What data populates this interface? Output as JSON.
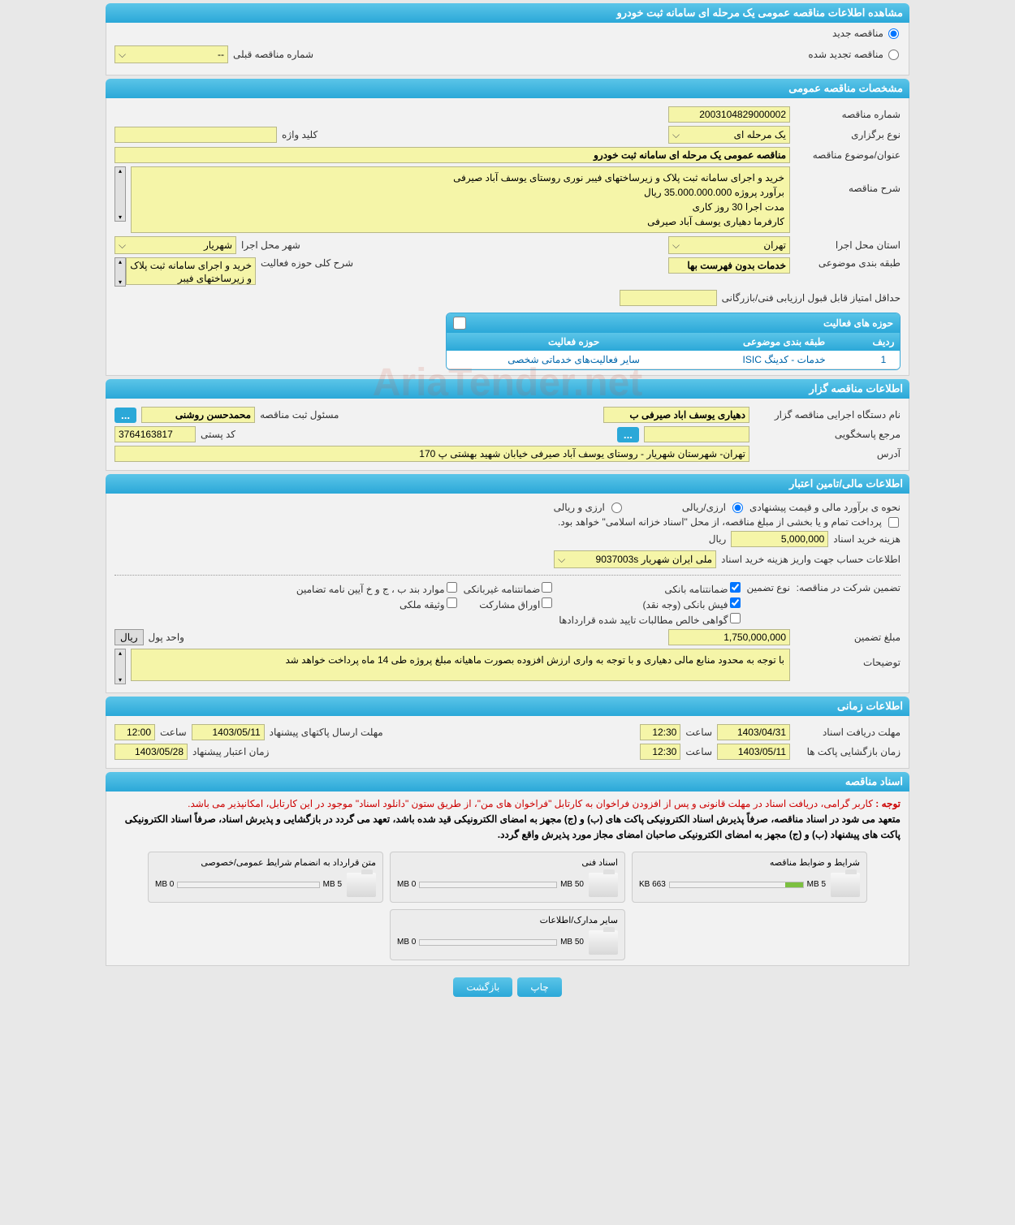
{
  "colors": {
    "header_bg_top": "#5bc5e8",
    "header_bg_bottom": "#2ba8d8",
    "field_bg": "#f5f5a8",
    "page_bg": "#e8e8e8",
    "notice_red": "#cc0000",
    "progress_green": "#7cc040",
    "link_blue": "#0066aa"
  },
  "main_title": "مشاهده اطلاعات مناقصه عمومی یک مرحله ای سامانه ثبت خودرو",
  "top_radio": {
    "new_label": "مناقصه جدید",
    "renewed_label": "مناقصه تجدید شده"
  },
  "prev_tender": {
    "label": "شماره مناقصه قبلی",
    "value": "--"
  },
  "sections": {
    "general": "مشخصات مناقصه عمومی",
    "issuer": "اطلاعات مناقصه گزار",
    "financial": "اطلاعات مالی/تامین اعتبار",
    "timing": "اطلاعات زمانی",
    "documents": "اسناد مناقصه"
  },
  "general": {
    "tender_no_label": "شماره مناقصه",
    "tender_no": "2003104829000002",
    "keyword_label": "کلید واژه",
    "type_label": "نوع برگزاری",
    "type_value": "یک مرحله ای",
    "subject_label": "عنوان/موضوع مناقصه",
    "subject_value": "مناقصه عمومی یک مرحله ای سامانه ثبت خودرو",
    "desc_label": "شرح مناقصه",
    "desc_text": "خرید و اجرای سامانه ثبت پلاک و زیرساختهای فیبر نوری روستای یوسف آباد صیرفی\nبرآورد پروژه 35.000.000.000 ریال\nمدت اجرا 30 روز کاری\nکارفرما دهیاری یوسف آباد صیرفی",
    "province_label": "استان محل اجرا",
    "province_value": "تهران",
    "city_label": "شهر محل اجرا",
    "city_value": "شهریار",
    "category_label": "طبقه بندی موضوعی",
    "category_value": "خدمات بدون فهرست بها",
    "activity_desc_label": "شرح کلی حوزه فعالیت",
    "activity_desc_value": "خرید و اجرای سامانه ثبت پلاک و زیرساختهای فیبر",
    "min_score_label": "حداقل امتیاز قابل قبول ارزیابی فنی/بازرگانی"
  },
  "activity_table": {
    "title": "حوزه های فعالیت",
    "headers": [
      "ردیف",
      "طبقه بندی موضوعی",
      "حوزه فعالیت"
    ],
    "row": [
      "1",
      "خدمات - کدینگ ISIC",
      "سایر فعالیت‌های خدماتی شخصی"
    ]
  },
  "issuer": {
    "org_label": "نام دستگاه اجرایی مناقصه گزار",
    "org_value": "دهیاری یوسف اباد صیرفی ب",
    "reg_resp_label": "مسئول ثبت مناقصه",
    "reg_resp_value": "محمدحسن روشنی",
    "contact_label": "مرجع پاسخگویی",
    "postal_label": "کد پستی",
    "postal_value": "3764163817",
    "address_label": "آدرس",
    "address_value": "تهران- شهرستان شهریار - روستای یوسف آباد صیرفی خیابان شهید بهشتی پ 170"
  },
  "financial": {
    "est_method_label": "نحوه ی برآورد مالی و قیمت پیشنهادی",
    "currency_rial": "ارزی/ریالی",
    "currency_both": "ارزی و ریالی",
    "payment_note": "پرداخت تمام و یا بخشی از مبلغ مناقصه، از محل \"اسناد خزانه اسلامی\" خواهد بود.",
    "doc_cost_label": "هزینه خرید اسناد",
    "doc_cost_value": "5,000,000",
    "rial_unit": "ریال",
    "account_label": "اطلاعات حساب جهت واریز هزینه خرید اسناد",
    "account_value": "ملی ایران شهریار 9037003s",
    "guarantee_label": "تضمین شرکت در مناقصه:",
    "guarantee_type_label": "نوع تضمین",
    "g1": "ضمانتنامه بانکی",
    "g2": "ضمانتنامه غیربانکی",
    "g3": "موارد بند ب ، ج و خ آیین نامه تضامین",
    "g4": "فیش بانکی (وجه نقد)",
    "g5": "اوراق مشارکت",
    "g6": "وثیقه ملکی",
    "g7": "گواهی خالص مطالبات تایید شده قراردادها",
    "guarantee_amount_label": "مبلغ تضمین",
    "guarantee_amount": "1,750,000,000",
    "currency_unit_label": "واحد پول",
    "remarks_label": "توضیحات",
    "remarks_value": "با توجه به محدود منابع مالی دهیاری و با توجه به واری ارزش افزوده بصورت ماهیانه مبلغ پروژه طی 14 ماه پرداخت خواهد شد"
  },
  "timing": {
    "receipt_deadline_label": "مهلت دریافت اسناد",
    "receipt_date": "1403/04/31",
    "receipt_time": "12:30",
    "time_label": "ساعت",
    "envelope_deadline_label": "مهلت ارسال پاکتهای پیشنهاد",
    "envelope_date": "1403/05/11",
    "envelope_time": "12:00",
    "opening_label": "زمان بازگشایی پاکت ها",
    "opening_date": "1403/05/11",
    "opening_time": "12:30",
    "validity_label": "زمان اعتبار پیشنهاد",
    "validity_date": "1403/05/28"
  },
  "notices": {
    "line1_prefix": "توجه : ",
    "line1": "کاربر گرامی، دریافت اسناد در مهلت قانونی و پس از افزودن فراخوان به کارتابل \"فراخوان های من\"، از طریق ستون \"دانلود اسناد\" موجود در این کارتابل، امکانپذیر می باشد.",
    "line2": "متعهد می شود در اسناد مناقصه، صرفاً پذیرش اسناد الکترونیکی پاکت های (ب) و (ج) مجهز به امضای الکترونیکی قید شده باشد، تعهد می گردد در بازگشایی و پذیرش اسناد، صرفاً اسناد الکترونیکی پاکت های پیشنهاد (ب) و (ج) مجهز به امضای الکترونیکی صاحبان امضای مجاز مورد پذیرش واقع گردد."
  },
  "docs": [
    {
      "title": "شرایط و ضوابط مناقصه",
      "used": "663 KB",
      "total": "5 MB",
      "fill_pct": 13
    },
    {
      "title": "اسناد فنی",
      "used": "0 MB",
      "total": "50 MB",
      "fill_pct": 0
    },
    {
      "title": "متن قرارداد به انضمام شرایط عمومی/خصوصی",
      "used": "0 MB",
      "total": "5 MB",
      "fill_pct": 0
    },
    {
      "title": "سایر مدارک/اطلاعات",
      "used": "0 MB",
      "total": "50 MB",
      "fill_pct": 0
    }
  ],
  "buttons": {
    "print": "چاپ",
    "back": "بازگشت"
  },
  "watermark": "AriaTender.net"
}
